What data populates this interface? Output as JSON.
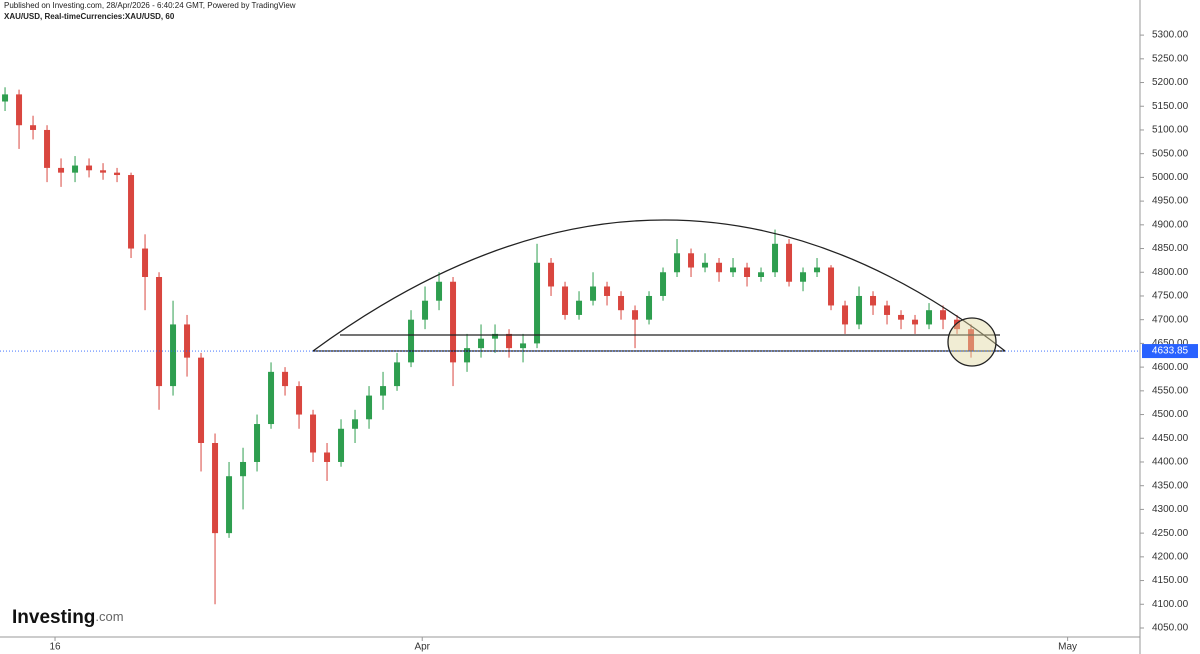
{
  "chart_data": {
    "type": "candlestick",
    "title": "Published on Investing.com, 28/Apr/2026 - 6:40:24 GMT, Powered by TradingView",
    "subtitle": "XAU/USD, Real-timeCurrencies:XAU/USD, 60",
    "watermark": "Investing",
    "watermark_suffix": ".com",
    "up_color": "#2e9e4f",
    "down_color": "#d9463f",
    "open": [
      5160,
      5175,
      5110,
      5100,
      5020,
      5010,
      5025,
      5015,
      5010,
      5005,
      4850,
      4790,
      4560,
      4690,
      4620,
      4440,
      4250,
      4370,
      4400,
      4480,
      4590,
      4560,
      4500,
      4420,
      4400,
      4470,
      4490,
      4540,
      4560,
      4610,
      4700,
      4740,
      4780,
      4610,
      4640,
      4660,
      4670,
      4640,
      4650,
      4820,
      4770,
      4710,
      4740,
      4770,
      4750,
      4720,
      4700,
      4750,
      4800,
      4840,
      4810,
      4820,
      4800,
      4810,
      4790,
      4800,
      4860,
      4780,
      4800,
      4810,
      4730,
      4690,
      4750,
      4730,
      4710,
      4700,
      4690,
      4720,
      4700,
      4680
    ],
    "high": [
      5190,
      5185,
      5130,
      5110,
      5040,
      5045,
      5040,
      5030,
      5020,
      5010,
      4880,
      4800,
      4740,
      4710,
      4630,
      4460,
      4400,
      4430,
      4500,
      4610,
      4600,
      4570,
      4510,
      4440,
      4490,
      4510,
      4560,
      4590,
      4630,
      4720,
      4770,
      4800,
      4790,
      4670,
      4690,
      4690,
      4680,
      4670,
      4860,
      4830,
      4780,
      4760,
      4800,
      4780,
      4760,
      4730,
      4760,
      4810,
      4870,
      4850,
      4840,
      4830,
      4830,
      4820,
      4810,
      4890,
      4870,
      4810,
      4830,
      4815,
      4740,
      4770,
      4760,
      4740,
      4720,
      4710,
      4735,
      4730,
      4710,
      4690
    ],
    "low": [
      5140,
      5060,
      5080,
      4990,
      4980,
      4990,
      5000,
      4995,
      4990,
      4830,
      4720,
      4510,
      4540,
      4580,
      4380,
      4100,
      4240,
      4300,
      4380,
      4470,
      4540,
      4470,
      4400,
      4360,
      4390,
      4440,
      4470,
      4510,
      4550,
      4600,
      4680,
      4720,
      4560,
      4590,
      4620,
      4630,
      4620,
      4610,
      4640,
      4750,
      4700,
      4700,
      4730,
      4730,
      4700,
      4640,
      4690,
      4740,
      4790,
      4790,
      4800,
      4780,
      4790,
      4770,
      4780,
      4790,
      4770,
      4760,
      4790,
      4720,
      4670,
      4680,
      4710,
      4690,
      4680,
      4670,
      4680,
      4680,
      4670,
      4620
    ],
    "close": [
      5175,
      5110,
      5100,
      5020,
      5010,
      5025,
      5015,
      5010,
      5005,
      4850,
      4790,
      4560,
      4690,
      4620,
      4440,
      4250,
      4370,
      4400,
      4480,
      4590,
      4560,
      4500,
      4420,
      4400,
      4470,
      4490,
      4540,
      4560,
      4610,
      4700,
      4740,
      4780,
      4610,
      4640,
      4660,
      4670,
      4640,
      4650,
      4820,
      4770,
      4710,
      4740,
      4770,
      4750,
      4720,
      4700,
      4750,
      4800,
      4840,
      4810,
      4820,
      4800,
      4810,
      4790,
      4800,
      4860,
      4780,
      4800,
      4810,
      4730,
      4690,
      4750,
      4730,
      4710,
      4700,
      4690,
      4720,
      4700,
      4680,
      4634
    ],
    "last_price": 4633.85,
    "last_price_color": "#2962ff",
    "xlim": [
      -0.36,
      81.07
    ],
    "xticks": [
      {
        "value": 3.57,
        "label": "16"
      },
      {
        "value": 29.8,
        "label": "Apr"
      },
      {
        "value": 75.9,
        "label": "May"
      }
    ],
    "ylim": [
      4031,
      5374
    ],
    "yticks": [
      {
        "value": 4050,
        "label": "4050.00"
      },
      {
        "value": 4100,
        "label": "4100.00"
      },
      {
        "value": 4150,
        "label": "4150.00"
      },
      {
        "value": 4200,
        "label": "4200.00"
      },
      {
        "value": 4250,
        "label": "4250.00"
      },
      {
        "value": 4300,
        "label": "4300.00"
      },
      {
        "value": 4350,
        "label": "4350.00"
      },
      {
        "value": 4400,
        "label": "4400.00"
      },
      {
        "value": 4450,
        "label": "4450.00"
      },
      {
        "value": 4500,
        "label": "4500.00"
      },
      {
        "value": 4550,
        "label": "4550.00"
      },
      {
        "value": 4600,
        "label": "4600.00"
      },
      {
        "value": 4650,
        "label": "4650.00"
      },
      {
        "value": 4700,
        "label": "4700.00"
      },
      {
        "value": 4750,
        "label": "4750.00"
      },
      {
        "value": 4800,
        "label": "4800.00"
      },
      {
        "value": 4850,
        "label": "4850.00"
      },
      {
        "value": 4900,
        "label": "4900.00"
      },
      {
        "value": 4950,
        "label": "4950.00"
      },
      {
        "value": 5000,
        "label": "5000.00"
      },
      {
        "value": 5050,
        "label": "5050.00"
      },
      {
        "value": 5100,
        "label": "5100.00"
      },
      {
        "value": 5150,
        "label": "5150.00"
      },
      {
        "value": 5200,
        "label": "5200.00"
      },
      {
        "value": 5250,
        "label": "5250.00"
      },
      {
        "value": 5300,
        "label": "5300.00"
      }
    ]
  }
}
